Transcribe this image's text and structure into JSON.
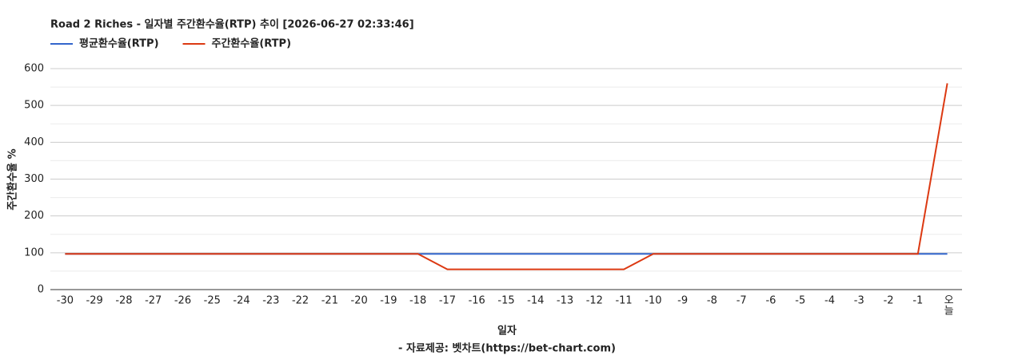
{
  "chart_data": {
    "type": "line",
    "title": "Road 2 Riches - 일자별 주간환수율(RTP) 추이 [2026-06-27 02:33:46]",
    "x_label": "일자",
    "y_label": "주간환수율 %",
    "footer": "- 자료제공: 벳차트(https://bet-chart.com)",
    "categories": [
      "-30",
      "-29",
      "-28",
      "-27",
      "-26",
      "-25",
      "-24",
      "-23",
      "-22",
      "-21",
      "-20",
      "-19",
      "-18",
      "-17",
      "-16",
      "-15",
      "-14",
      "-13",
      "-12",
      "-11",
      "-10",
      "-9",
      "-8",
      "-7",
      "-6",
      "-5",
      "-4",
      "-3",
      "-2",
      "-1",
      "오늘"
    ],
    "series": [
      {
        "name": "평균환수율(RTP)",
        "color": "#3366cc",
        "values": [
          97,
          97,
          97,
          97,
          97,
          97,
          97,
          97,
          97,
          97,
          97,
          97,
          97,
          97,
          97,
          97,
          97,
          97,
          97,
          97,
          97,
          97,
          97,
          97,
          97,
          97,
          97,
          97,
          97,
          97,
          97
        ]
      },
      {
        "name": "주간환수율(RTP)",
        "color": "#dc3912",
        "values": [
          97,
          97,
          97,
          97,
          97,
          97,
          97,
          97,
          97,
          97,
          97,
          97,
          97,
          55,
          55,
          55,
          55,
          55,
          55,
          55,
          97,
          97,
          97,
          97,
          97,
          97,
          97,
          97,
          97,
          97,
          560
        ]
      }
    ],
    "ylim": [
      0,
      600
    ],
    "yticks": [
      0,
      100,
      200,
      300,
      400,
      500,
      600
    ],
    "grid": true,
    "legend": "top-left"
  }
}
